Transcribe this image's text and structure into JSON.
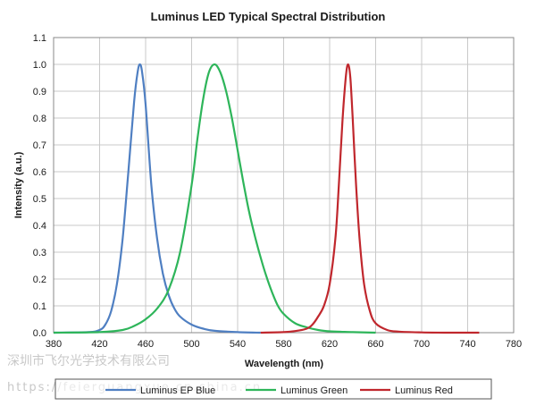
{
  "chart_data": {
    "type": "line",
    "title": "Luminus LED Typical Spectral Distribution",
    "xlabel": "Wavelength (nm)",
    "ylabel": "Intensity (a.u.)",
    "xlim": [
      380,
      780
    ],
    "ylim": [
      0,
      1.1
    ],
    "x_ticks": [
      "380",
      "420",
      "460",
      "500",
      "540",
      "580",
      "620",
      "660",
      "700",
      "740",
      "780"
    ],
    "y_ticks": [
      "0.0",
      "0.1",
      "0.2",
      "0.3",
      "0.4",
      "0.5",
      "0.6",
      "0.7",
      "0.8",
      "0.9",
      "1.0",
      "1.1"
    ],
    "grid": "horizontal",
    "legend_position": "bottom",
    "series": [
      {
        "name": "Luminus EP Blue",
        "color": "#4f7fc2",
        "x": [
          380,
          410,
          420,
          425,
          430,
          435,
          440,
          445,
          450,
          453,
          455,
          457,
          460,
          465,
          470,
          475,
          480,
          485,
          490,
          500,
          510,
          520,
          540,
          560
        ],
        "y": [
          0,
          0.002,
          0.01,
          0.03,
          0.08,
          0.18,
          0.35,
          0.6,
          0.86,
          0.97,
          1.0,
          0.97,
          0.85,
          0.55,
          0.35,
          0.22,
          0.14,
          0.09,
          0.06,
          0.03,
          0.015,
          0.007,
          0.002,
          0
        ]
      },
      {
        "name": "Luminus Green",
        "color": "#2eb55a",
        "x": [
          380,
          420,
          440,
          450,
          460,
          470,
          480,
          490,
          500,
          505,
          510,
          515,
          520,
          525,
          530,
          535,
          540,
          545,
          550,
          555,
          560,
          565,
          570,
          575,
          580,
          590,
          600,
          610,
          620,
          640,
          660
        ],
        "y": [
          0,
          0.002,
          0.01,
          0.025,
          0.05,
          0.09,
          0.16,
          0.3,
          0.55,
          0.72,
          0.87,
          0.97,
          1.0,
          0.97,
          0.9,
          0.8,
          0.68,
          0.56,
          0.45,
          0.36,
          0.28,
          0.21,
          0.15,
          0.1,
          0.07,
          0.035,
          0.02,
          0.01,
          0.005,
          0.002,
          0
        ]
      },
      {
        "name": "Luminus Red",
        "color": "#c0272d",
        "x": [
          560,
          580,
          590,
          600,
          605,
          610,
          615,
          620,
          625,
          628,
          631,
          634,
          636,
          638,
          640,
          643,
          646,
          650,
          655,
          660,
          670,
          680,
          700,
          720,
          750
        ],
        "y": [
          0,
          0.002,
          0.006,
          0.015,
          0.03,
          0.06,
          0.1,
          0.18,
          0.35,
          0.55,
          0.78,
          0.95,
          1.0,
          0.95,
          0.8,
          0.55,
          0.35,
          0.18,
          0.08,
          0.035,
          0.01,
          0.004,
          0.001,
          0,
          0
        ]
      }
    ]
  },
  "watermark": {
    "line1": "深圳市飞尔光学技术有限公司",
    "line2": "https://feierguangxue.cn.china.cn"
  }
}
